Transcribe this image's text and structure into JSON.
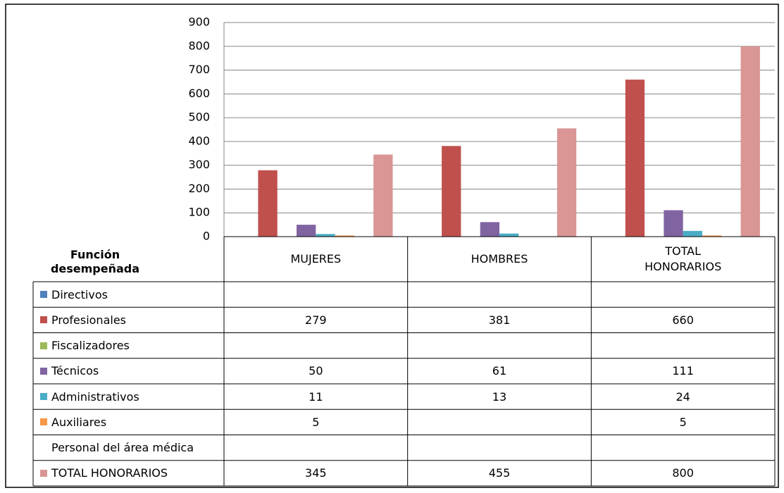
{
  "chart_data": {
    "type": "bar",
    "axis_label": "Función desempeñada",
    "categories": [
      "MUJERES",
      "HOMBRES",
      "TOTAL HONORARIOS"
    ],
    "series": [
      {
        "name": "Directivos",
        "color": "#4F81BD",
        "values": [
          null,
          null,
          null
        ]
      },
      {
        "name": "Profesionales",
        "color": "#C0504D",
        "values": [
          279,
          381,
          660
        ]
      },
      {
        "name": "Fiscalizadores",
        "color": "#9BBB59",
        "values": [
          null,
          null,
          null
        ]
      },
      {
        "name": "Técnicos",
        "color": "#8064A2",
        "values": [
          50,
          61,
          111
        ]
      },
      {
        "name": "Administrativos",
        "color": "#4BACC6",
        "values": [
          11,
          13,
          24
        ]
      },
      {
        "name": "Auxiliares",
        "color": "#F79646",
        "values": [
          5,
          null,
          5
        ]
      },
      {
        "name": "Personal del área médica",
        "values": [
          null,
          null,
          null
        ]
      },
      {
        "name": "TOTAL HONORARIOS",
        "color": "#D99694",
        "values": [
          345,
          455,
          800
        ]
      }
    ],
    "ylim": [
      0,
      900
    ],
    "yticks": [
      0,
      100,
      200,
      300,
      400,
      500,
      600,
      700,
      800,
      900
    ],
    "grid": true
  }
}
